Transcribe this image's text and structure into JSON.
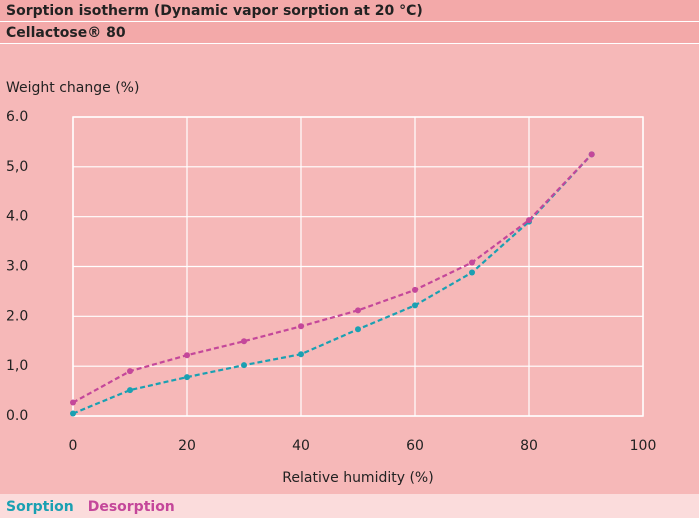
{
  "chart_data": {
    "type": "line",
    "title": "Sorption isotherm (Dynamic vapor sorption at 20 °C)",
    "subtitle": "Cellactose® 80",
    "y_label": "Weight change (%)",
    "x_label": "Relative humidity (%)",
    "x": [
      0,
      10,
      20,
      30,
      40,
      50,
      60,
      70,
      80,
      91
    ],
    "series": [
      {
        "name": "Sorption",
        "color": "#1aa0b2",
        "values": [
          0.05,
          0.52,
          0.78,
          1.02,
          1.24,
          1.74,
          2.22,
          2.88,
          3.9,
          5.25
        ]
      },
      {
        "name": "Desorption",
        "color": "#c4479a",
        "values": [
          0.27,
          0.9,
          1.22,
          1.5,
          1.8,
          2.12,
          2.53,
          3.08,
          3.93,
          5.25
        ]
      }
    ],
    "xlim": [
      0,
      100
    ],
    "xticks": [
      0,
      20,
      40,
      60,
      80,
      100
    ],
    "ylim": [
      0,
      6
    ],
    "yticks": [
      {
        "value": 0,
        "label": "0.0"
      },
      {
        "value": 1,
        "label": "1,0"
      },
      {
        "value": 2,
        "label": "2.0"
      },
      {
        "value": 3,
        "label": "3.0"
      },
      {
        "value": 4,
        "label": "4.0"
      },
      {
        "value": 5,
        "label": "5,0"
      },
      {
        "value": 6,
        "label": "6.0"
      }
    ],
    "grid": true
  }
}
